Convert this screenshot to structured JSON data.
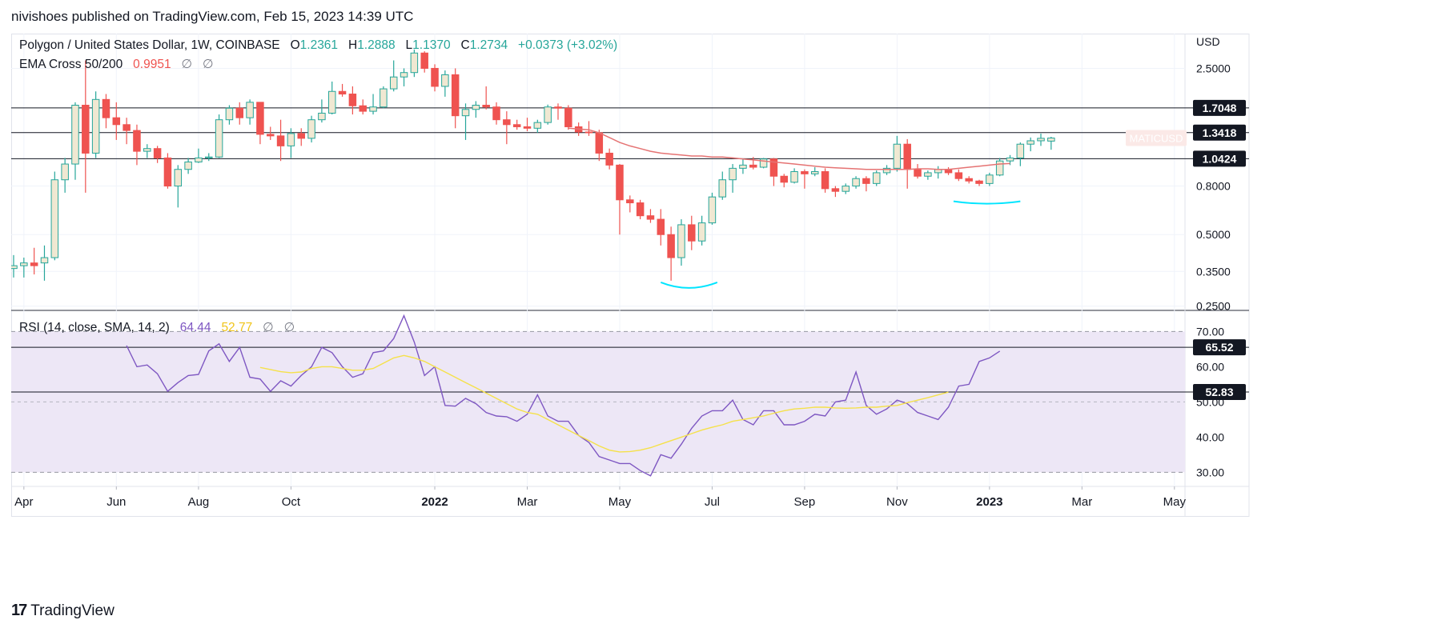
{
  "header": {
    "published_line": "nivishoes published on TradingView.com, Feb 15, 2023 14:39 UTC"
  },
  "legend": {
    "symbol": "Polygon / United States Dollar, 1W, COINBASE",
    "o_label": "O",
    "o_value": "1.2361",
    "h_label": "H",
    "h_value": "1.2888",
    "l_label": "L",
    "l_value": "1.1370",
    "c_label": "C",
    "c_value": "1.2734",
    "change": "+0.0373 (+3.02%)",
    "ema_label": "EMA Cross 50/200",
    "ema_value": "0.9951",
    "ema_extra1": "∅",
    "ema_extra2": "∅",
    "rsi_label": "RSI (14, close, SMA, 14, 2)",
    "rsi_value": "64.44",
    "rsi_sma_value": "52.77",
    "rsi_extra1": "∅",
    "rsi_extra2": "∅"
  },
  "footer": {
    "brand_mark": "17",
    "brand": "TradingView"
  },
  "colors": {
    "up_body": "#f0e8d2",
    "up_border": "#26a69a",
    "down": "#ef5350",
    "ema": "#e57373",
    "rsi": "#7e57c2",
    "rsi_sma": "#f5e14a",
    "rsi_band": "#ede7f6",
    "arc": "#00e5ff"
  },
  "chart_data": [
    {
      "type": "candlestick",
      "title": "Polygon / United States Dollar, 1W, COINBASE",
      "y_axis_unit": "USD",
      "y_scale": "log",
      "y_ticks": [
        "2.5000",
        "0.8000",
        "0.5000",
        "0.3500",
        "0.2500"
      ],
      "y_range": [
        0.24,
        3.5
      ],
      "x_ticks": [
        "Apr",
        "Jun",
        "Aug",
        "Oct",
        "2022",
        "Mar",
        "May",
        "Jul",
        "Sep",
        "Nov",
        "2023",
        "Mar",
        "May"
      ],
      "horizontal_levels": [
        1.7048,
        1.3418,
        1.0424
      ],
      "price_labels": [
        "1.7048",
        "1.3418",
        "1.0424"
      ],
      "symbol_tag": "MATICUSD",
      "candles": [
        {
          "o": 0.36,
          "h": 0.41,
          "l": 0.33,
          "c": 0.37
        },
        {
          "o": 0.37,
          "h": 0.4,
          "l": 0.33,
          "c": 0.38
        },
        {
          "o": 0.38,
          "h": 0.44,
          "l": 0.34,
          "c": 0.37
        },
        {
          "o": 0.38,
          "h": 0.45,
          "l": 0.32,
          "c": 0.4
        },
        {
          "o": 0.4,
          "h": 0.92,
          "l": 0.39,
          "c": 0.85
        },
        {
          "o": 0.85,
          "h": 1.05,
          "l": 0.75,
          "c": 0.99
        },
        {
          "o": 0.99,
          "h": 1.8,
          "l": 0.85,
          "c": 1.75
        },
        {
          "o": 1.75,
          "h": 2.7,
          "l": 0.75,
          "c": 1.1
        },
        {
          "o": 1.1,
          "h": 2.0,
          "l": 1.05,
          "c": 1.85
        },
        {
          "o": 1.85,
          "h": 1.95,
          "l": 1.4,
          "c": 1.55
        },
        {
          "o": 1.55,
          "h": 1.8,
          "l": 1.25,
          "c": 1.45
        },
        {
          "o": 1.45,
          "h": 1.55,
          "l": 1.2,
          "c": 1.37
        },
        {
          "o": 1.37,
          "h": 1.45,
          "l": 0.98,
          "c": 1.12
        },
        {
          "o": 1.12,
          "h": 1.2,
          "l": 1.05,
          "c": 1.15
        },
        {
          "o": 1.15,
          "h": 1.18,
          "l": 1.0,
          "c": 1.05
        },
        {
          "o": 1.05,
          "h": 1.1,
          "l": 0.78,
          "c": 0.8
        },
        {
          "o": 0.8,
          "h": 0.98,
          "l": 0.65,
          "c": 0.94
        },
        {
          "o": 0.94,
          "h": 1.05,
          "l": 0.9,
          "c": 1.01
        },
        {
          "o": 1.01,
          "h": 1.15,
          "l": 1.0,
          "c": 1.05
        },
        {
          "o": 1.05,
          "h": 1.1,
          "l": 1.02,
          "c": 1.06
        },
        {
          "o": 1.06,
          "h": 1.6,
          "l": 1.05,
          "c": 1.52
        },
        {
          "o": 1.52,
          "h": 1.75,
          "l": 1.45,
          "c": 1.7
        },
        {
          "o": 1.7,
          "h": 1.8,
          "l": 1.45,
          "c": 1.55
        },
        {
          "o": 1.55,
          "h": 1.85,
          "l": 1.45,
          "c": 1.8
        },
        {
          "o": 1.8,
          "h": 1.8,
          "l": 1.2,
          "c": 1.32
        },
        {
          "o": 1.32,
          "h": 1.42,
          "l": 1.25,
          "c": 1.3
        },
        {
          "o": 1.3,
          "h": 1.52,
          "l": 1.02,
          "c": 1.18
        },
        {
          "o": 1.18,
          "h": 1.4,
          "l": 1.05,
          "c": 1.33
        },
        {
          "o": 1.33,
          "h": 1.4,
          "l": 1.18,
          "c": 1.27
        },
        {
          "o": 1.27,
          "h": 1.58,
          "l": 1.22,
          "c": 1.52
        },
        {
          "o": 1.52,
          "h": 1.85,
          "l": 1.48,
          "c": 1.62
        },
        {
          "o": 1.62,
          "h": 2.2,
          "l": 1.6,
          "c": 2.0
        },
        {
          "o": 2.0,
          "h": 2.15,
          "l": 1.9,
          "c": 1.95
        },
        {
          "o": 1.95,
          "h": 2.1,
          "l": 1.6,
          "c": 1.74
        },
        {
          "o": 1.74,
          "h": 1.85,
          "l": 1.6,
          "c": 1.65
        },
        {
          "o": 1.65,
          "h": 1.95,
          "l": 1.6,
          "c": 1.72
        },
        {
          "o": 1.72,
          "h": 2.1,
          "l": 1.7,
          "c": 2.05
        },
        {
          "o": 2.05,
          "h": 2.7,
          "l": 2.0,
          "c": 2.3
        },
        {
          "o": 2.3,
          "h": 2.5,
          "l": 2.1,
          "c": 2.4
        },
        {
          "o": 2.4,
          "h": 3.0,
          "l": 2.3,
          "c": 2.9
        },
        {
          "o": 2.9,
          "h": 2.95,
          "l": 2.4,
          "c": 2.5
        },
        {
          "o": 2.5,
          "h": 2.6,
          "l": 2.0,
          "c": 2.1
        },
        {
          "o": 2.1,
          "h": 2.45,
          "l": 1.9,
          "c": 2.35
        },
        {
          "o": 2.35,
          "h": 2.5,
          "l": 1.4,
          "c": 1.58
        },
        {
          "o": 1.58,
          "h": 1.78,
          "l": 1.25,
          "c": 1.68
        },
        {
          "o": 1.68,
          "h": 1.82,
          "l": 1.55,
          "c": 1.75
        },
        {
          "o": 1.75,
          "h": 2.1,
          "l": 1.68,
          "c": 1.72
        },
        {
          "o": 1.72,
          "h": 1.8,
          "l": 1.45,
          "c": 1.52
        },
        {
          "o": 1.52,
          "h": 1.65,
          "l": 1.2,
          "c": 1.45
        },
        {
          "o": 1.45,
          "h": 1.52,
          "l": 1.38,
          "c": 1.42
        },
        {
          "o": 1.42,
          "h": 1.55,
          "l": 1.36,
          "c": 1.4
        },
        {
          "o": 1.4,
          "h": 1.52,
          "l": 1.34,
          "c": 1.48
        },
        {
          "o": 1.48,
          "h": 1.76,
          "l": 1.45,
          "c": 1.72
        },
        {
          "o": 1.72,
          "h": 1.78,
          "l": 1.52,
          "c": 1.7
        },
        {
          "o": 1.7,
          "h": 1.75,
          "l": 1.38,
          "c": 1.42
        },
        {
          "o": 1.42,
          "h": 1.48,
          "l": 1.3,
          "c": 1.35
        },
        {
          "o": 1.35,
          "h": 1.5,
          "l": 1.3,
          "c": 1.34
        },
        {
          "o": 1.34,
          "h": 1.38,
          "l": 1.02,
          "c": 1.1
        },
        {
          "o": 1.1,
          "h": 1.15,
          "l": 0.94,
          "c": 0.98
        },
        {
          "o": 0.98,
          "h": 0.99,
          "l": 0.5,
          "c": 0.7
        },
        {
          "o": 0.7,
          "h": 0.73,
          "l": 0.62,
          "c": 0.68
        },
        {
          "o": 0.68,
          "h": 0.7,
          "l": 0.58,
          "c": 0.6
        },
        {
          "o": 0.6,
          "h": 0.64,
          "l": 0.56,
          "c": 0.58
        },
        {
          "o": 0.58,
          "h": 0.64,
          "l": 0.45,
          "c": 0.5
        },
        {
          "o": 0.5,
          "h": 0.54,
          "l": 0.32,
          "c": 0.4
        },
        {
          "o": 0.4,
          "h": 0.58,
          "l": 0.37,
          "c": 0.55
        },
        {
          "o": 0.55,
          "h": 0.6,
          "l": 0.43,
          "c": 0.47
        },
        {
          "o": 0.47,
          "h": 0.6,
          "l": 0.45,
          "c": 0.56
        },
        {
          "o": 0.56,
          "h": 0.75,
          "l": 0.55,
          "c": 0.72
        },
        {
          "o": 0.72,
          "h": 0.92,
          "l": 0.7,
          "c": 0.85
        },
        {
          "o": 0.85,
          "h": 0.99,
          "l": 0.75,
          "c": 0.95
        },
        {
          "o": 0.95,
          "h": 1.04,
          "l": 0.9,
          "c": 0.98
        },
        {
          "o": 0.98,
          "h": 1.06,
          "l": 0.94,
          "c": 0.96
        },
        {
          "o": 0.96,
          "h": 1.05,
          "l": 0.95,
          "c": 1.04
        },
        {
          "o": 1.04,
          "h": 1.05,
          "l": 0.8,
          "c": 0.88
        },
        {
          "o": 0.88,
          "h": 0.9,
          "l": 0.79,
          "c": 0.83
        },
        {
          "o": 0.83,
          "h": 0.95,
          "l": 0.82,
          "c": 0.92
        },
        {
          "o": 0.92,
          "h": 0.94,
          "l": 0.78,
          "c": 0.9
        },
        {
          "o": 0.9,
          "h": 0.96,
          "l": 0.88,
          "c": 0.92
        },
        {
          "o": 0.92,
          "h": 0.95,
          "l": 0.75,
          "c": 0.78
        },
        {
          "o": 0.78,
          "h": 0.8,
          "l": 0.72,
          "c": 0.76
        },
        {
          "o": 0.76,
          "h": 0.82,
          "l": 0.74,
          "c": 0.8
        },
        {
          "o": 0.8,
          "h": 0.88,
          "l": 0.78,
          "c": 0.86
        },
        {
          "o": 0.86,
          "h": 0.88,
          "l": 0.76,
          "c": 0.82
        },
        {
          "o": 0.82,
          "h": 0.93,
          "l": 0.8,
          "c": 0.91
        },
        {
          "o": 0.91,
          "h": 0.98,
          "l": 0.89,
          "c": 0.95
        },
        {
          "o": 0.95,
          "h": 1.3,
          "l": 0.92,
          "c": 1.2
        },
        {
          "o": 1.2,
          "h": 1.26,
          "l": 0.78,
          "c": 0.94
        },
        {
          "o": 0.94,
          "h": 0.99,
          "l": 0.86,
          "c": 0.88
        },
        {
          "o": 0.88,
          "h": 0.93,
          "l": 0.85,
          "c": 0.91
        },
        {
          "o": 0.91,
          "h": 0.97,
          "l": 0.86,
          "c": 0.94
        },
        {
          "o": 0.94,
          "h": 0.96,
          "l": 0.89,
          "c": 0.91
        },
        {
          "o": 0.91,
          "h": 0.94,
          "l": 0.84,
          "c": 0.86
        },
        {
          "o": 0.86,
          "h": 0.88,
          "l": 0.82,
          "c": 0.84
        },
        {
          "o": 0.84,
          "h": 0.85,
          "l": 0.8,
          "c": 0.82
        },
        {
          "o": 0.82,
          "h": 0.91,
          "l": 0.8,
          "c": 0.89
        },
        {
          "o": 0.89,
          "h": 1.05,
          "l": 0.88,
          "c": 1.02
        },
        {
          "o": 1.02,
          "h": 1.08,
          "l": 0.98,
          "c": 1.05
        },
        {
          "o": 1.05,
          "h": 1.22,
          "l": 0.97,
          "c": 1.2
        },
        {
          "o": 1.2,
          "h": 1.28,
          "l": 1.12,
          "c": 1.24
        },
        {
          "o": 1.24,
          "h": 1.33,
          "l": 1.18,
          "c": 1.27
        },
        {
          "o": 1.2361,
          "h": 1.2888,
          "l": 1.137,
          "c": 1.2734
        }
      ],
      "ema": {
        "start_index": 54,
        "values": [
          1.4,
          1.39,
          1.38,
          1.34,
          1.28,
          1.22,
          1.18,
          1.15,
          1.12,
          1.1,
          1.09,
          1.08,
          1.07,
          1.07,
          1.06,
          1.06,
          1.05,
          1.04,
          1.03,
          1.02,
          1.01,
          1.0,
          0.99,
          0.98,
          0.97,
          0.96,
          0.955,
          0.95,
          0.945,
          0.94,
          0.94,
          0.94,
          0.94,
          0.94,
          0.945,
          0.945,
          0.94,
          0.94,
          0.95,
          0.96,
          0.97,
          0.98,
          0.99,
          0.9951
        ]
      }
    },
    {
      "type": "line",
      "title": "RSI (14, close, SMA, 14, 2)",
      "y_range": [
        26,
        76
      ],
      "y_ticks": [
        "70.00",
        "60.00",
        "50.00",
        "40.00",
        "30.00"
      ],
      "band": [
        30,
        70
      ],
      "horizontal_levels": [
        65.52,
        52.83
      ],
      "price_labels": [
        "65.52",
        "52.83"
      ],
      "series": [
        {
          "start_index": 11,
          "values": [
            66,
            60,
            60.5,
            58,
            53,
            55.5,
            57.5,
            57.8,
            64.5,
            66.5,
            61.5,
            65.5,
            57,
            56.5,
            53,
            56,
            54.5,
            57.5,
            60,
            65.5,
            64,
            60,
            57,
            58,
            64,
            64.5,
            68,
            74.5,
            67,
            57.5,
            60,
            49,
            48.8,
            51,
            49.5,
            47,
            46,
            45.8,
            44.5,
            46.5,
            52,
            46,
            44.5,
            44.5,
            40.5,
            38.5,
            34.5,
            33.5,
            32.5,
            32.5,
            30.5,
            29,
            35,
            34,
            38,
            42.5,
            46,
            47.5,
            47.5,
            50.5,
            45,
            43.5,
            47.5,
            47.5,
            43.5,
            43.5,
            44.5,
            46.5,
            46,
            50,
            50.5,
            58.5,
            49,
            46.5,
            48,
            50.5,
            49.5,
            47,
            46,
            45,
            48.5,
            54.5,
            55,
            61.5,
            62.5,
            64.44
          ]
        },
        {
          "start_index": 24,
          "values": [
            59.8,
            59.2,
            58.6,
            58.3,
            58.5,
            59.5,
            60,
            60,
            59.5,
            59,
            59,
            59.5,
            61,
            62.5,
            63.2,
            62.5,
            61.5,
            60,
            58.5,
            57,
            55.5,
            54,
            52.5,
            51,
            49.5,
            48,
            47,
            46.5,
            45,
            43.5,
            42,
            40.5,
            39,
            37.5,
            36.3,
            35.8,
            35.9,
            36.3,
            37,
            38,
            39,
            40,
            41,
            42,
            42.8,
            43.5,
            44.5,
            45,
            45.5,
            46,
            46.8,
            47.5,
            48,
            48.2,
            48.5,
            48.5,
            48.3,
            48.2,
            48.3,
            48.5,
            48.5,
            48.8,
            49,
            49.8,
            50.5,
            51.2,
            52,
            52.77
          ]
        }
      ]
    }
  ]
}
